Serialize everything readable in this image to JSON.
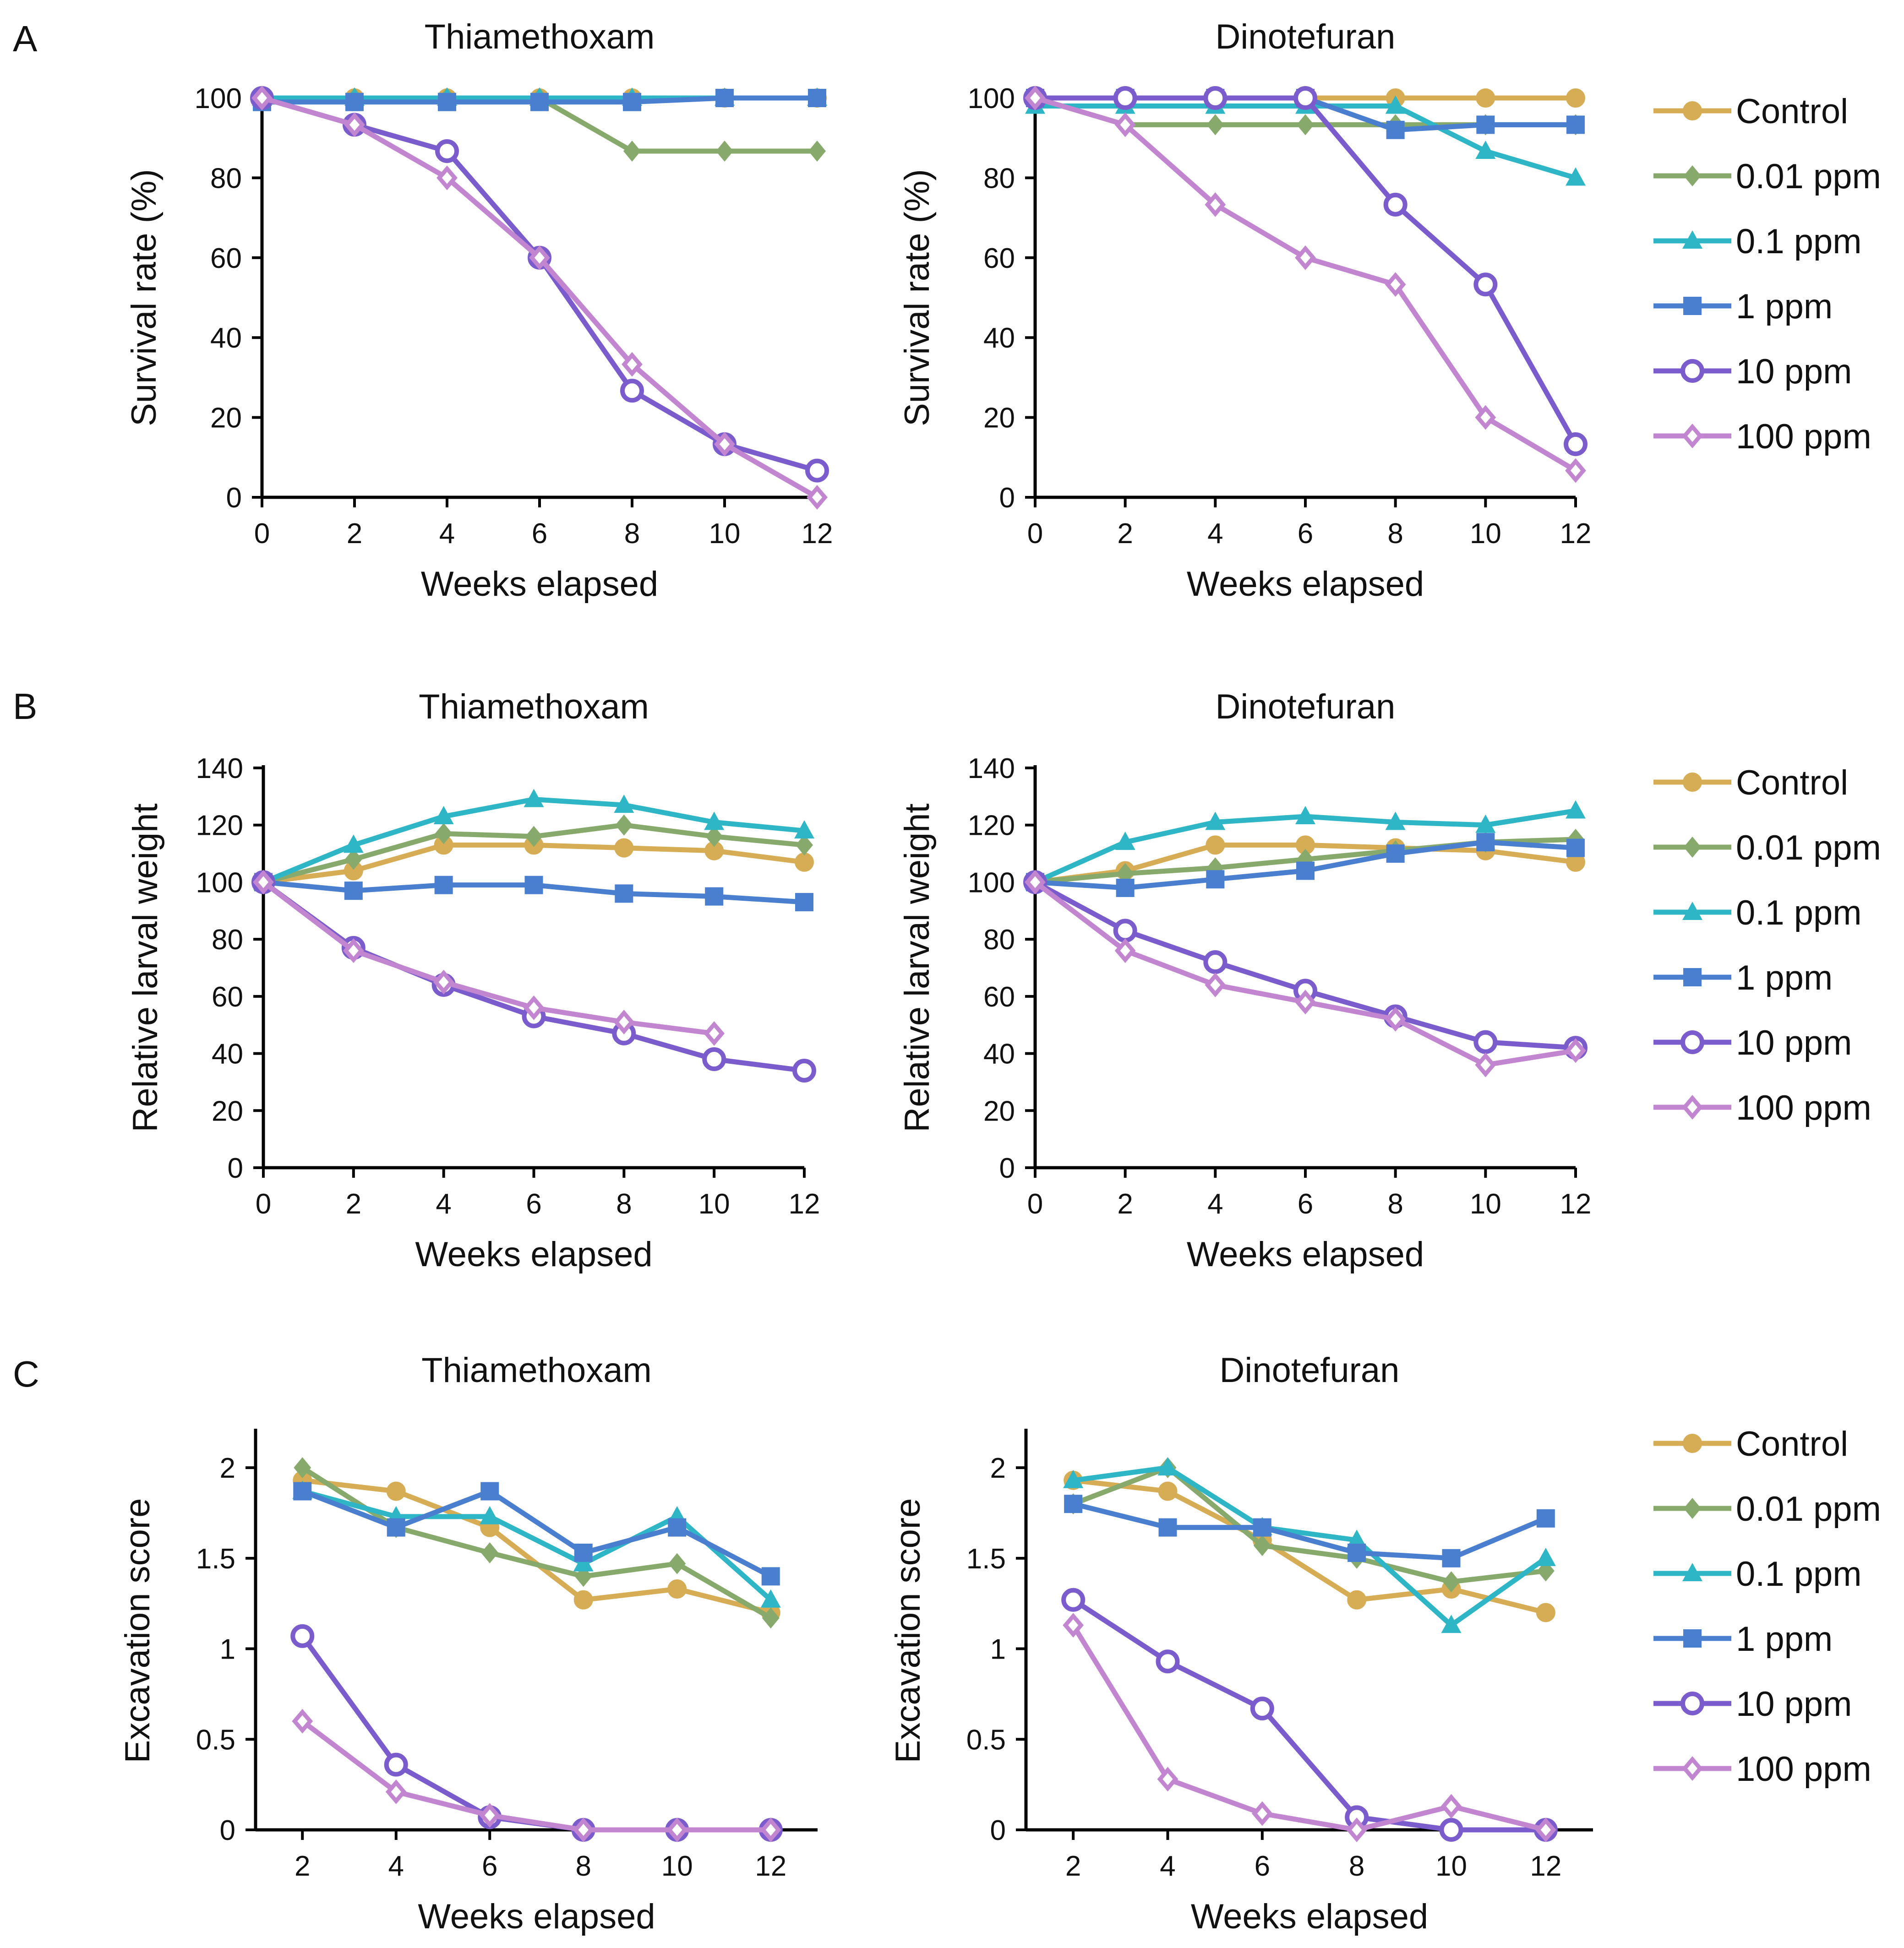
{
  "colors": {
    "control": "#d6ad55",
    "ppm_0_01": "#87a96b",
    "ppm_0_1": "#2fb6c6",
    "ppm_1": "#4a7fd0",
    "ppm_10": "#7b5ccc",
    "ppm_100": "#c285d0",
    "axis": "#000000"
  },
  "panel_letters": [
    "A",
    "B",
    "C"
  ],
  "legend": {
    "items": [
      {
        "key": "control",
        "label": "Control",
        "marker": "circle-filled"
      },
      {
        "key": "ppm_0_01",
        "label": "0.01 ppm",
        "marker": "diamond-filled"
      },
      {
        "key": "ppm_0_1",
        "label": "0.1 ppm",
        "marker": "triangle-filled"
      },
      {
        "key": "ppm_1",
        "label": "1 ppm",
        "marker": "square-filled"
      },
      {
        "key": "ppm_10",
        "label": "10 ppm",
        "marker": "circle-open"
      },
      {
        "key": "ppm_100",
        "label": "100 ppm",
        "marker": "diamond-open"
      }
    ]
  },
  "chart_data": [
    {
      "id": "A-thiamethoxam",
      "panel": "A",
      "type": "line",
      "title": "Thiamethoxam",
      "xlabel": "Weeks elapsed",
      "ylabel": "Survival rate (%)",
      "xlim": [
        0,
        12
      ],
      "ylim": [
        0,
        100
      ],
      "xticks": [
        0,
        2,
        4,
        6,
        8,
        10,
        12
      ],
      "yticks": [
        0,
        20,
        40,
        60,
        80,
        100
      ],
      "ytick_labels": [
        "0",
        "20",
        "40",
        "60",
        "80",
        "100"
      ],
      "series": [
        {
          "key": "control",
          "name": "Control",
          "x": [
            0,
            2,
            4,
            6,
            8,
            10,
            12
          ],
          "values": [
            100,
            100,
            100,
            100,
            100,
            100,
            100
          ]
        },
        {
          "key": "ppm_0_01",
          "name": "0.01 ppm",
          "x": [
            0,
            2,
            4,
            6,
            8,
            10,
            12
          ],
          "values": [
            100,
            100,
            100,
            100,
            86.7,
            86.7,
            86.7
          ]
        },
        {
          "key": "ppm_0_1",
          "name": "0.1 ppm",
          "x": [
            0,
            2,
            4,
            6,
            8,
            10,
            12
          ],
          "values": [
            100,
            100,
            100,
            100,
            100,
            100,
            100
          ]
        },
        {
          "key": "ppm_1",
          "name": "1 ppm",
          "x": [
            0,
            2,
            4,
            6,
            8,
            10,
            12
          ],
          "values": [
            99,
            99,
            99,
            99,
            99,
            100,
            100
          ]
        },
        {
          "key": "ppm_10",
          "name": "10 ppm",
          "x": [
            0,
            2,
            4,
            6,
            8,
            10,
            12
          ],
          "values": [
            100,
            93.3,
            86.7,
            60,
            26.7,
            13.3,
            6.7
          ]
        },
        {
          "key": "ppm_100",
          "name": "100 ppm",
          "x": [
            0,
            2,
            4,
            6,
            8,
            10,
            12
          ],
          "values": [
            100,
            93.3,
            80,
            60,
            33.3,
            13.3,
            0
          ]
        }
      ]
    },
    {
      "id": "A-dinotefuran",
      "panel": "A",
      "type": "line",
      "title": "Dinotefuran",
      "xlabel": "Weeks elapsed",
      "ylabel": "Survival rate (%)",
      "xlim": [
        0,
        12
      ],
      "ylim": [
        0,
        100
      ],
      "xticks": [
        0,
        2,
        4,
        6,
        8,
        10,
        12
      ],
      "yticks": [
        0,
        20,
        40,
        60,
        80,
        100
      ],
      "ytick_labels": [
        "0",
        "20",
        "40",
        "60",
        "80",
        "100"
      ],
      "series": [
        {
          "key": "control",
          "name": "Control",
          "x": [
            0,
            2,
            4,
            6,
            8,
            10,
            12
          ],
          "values": [
            100,
            100,
            100,
            100,
            100,
            100,
            100
          ]
        },
        {
          "key": "ppm_0_01",
          "name": "0.01 ppm",
          "x": [
            0,
            2,
            4,
            6,
            8,
            10,
            12
          ],
          "values": [
            100,
            93.3,
            93.3,
            93.3,
            93.3,
            93.3,
            93.3
          ]
        },
        {
          "key": "ppm_0_1",
          "name": "0.1 ppm",
          "x": [
            0,
            2,
            4,
            6,
            8,
            10,
            12
          ],
          "values": [
            98,
            98,
            98,
            98,
            98,
            86.7,
            80
          ]
        },
        {
          "key": "ppm_1",
          "name": "1 ppm",
          "x": [
            0,
            2,
            4,
            6,
            8,
            10,
            12
          ],
          "values": [
            100,
            100,
            100,
            100,
            92,
            93.3,
            93.3
          ]
        },
        {
          "key": "ppm_10",
          "name": "10 ppm",
          "x": [
            0,
            2,
            4,
            6,
            8,
            10,
            12
          ],
          "values": [
            100,
            100,
            100,
            100,
            73.3,
            53.3,
            13.3
          ]
        },
        {
          "key": "ppm_100",
          "name": "100 ppm",
          "x": [
            0,
            2,
            4,
            6,
            8,
            10,
            12
          ],
          "values": [
            100,
            93.3,
            73.3,
            60,
            53.3,
            20,
            6.7
          ]
        }
      ]
    },
    {
      "id": "B-thiamethoxam",
      "panel": "B",
      "type": "line",
      "title": "Thiamethoxam",
      "xlabel": "Weeks elapsed",
      "ylabel": "Relative larval weight",
      "xlim": [
        0,
        12
      ],
      "ylim": [
        0,
        140
      ],
      "xticks": [
        0,
        2,
        4,
        6,
        8,
        10,
        12
      ],
      "yticks": [
        0,
        20,
        40,
        60,
        80,
        100,
        120,
        140
      ],
      "ytick_labels": [
        "0",
        "20",
        "40",
        "60",
        "80",
        "100",
        "120",
        "140"
      ],
      "series": [
        {
          "key": "control",
          "name": "Control",
          "x": [
            0,
            2,
            4,
            6,
            8,
            10,
            12
          ],
          "values": [
            100,
            104,
            113,
            113,
            112,
            111,
            107
          ]
        },
        {
          "key": "ppm_0_01",
          "name": "0.01 ppm",
          "x": [
            0,
            2,
            4,
            6,
            8,
            10,
            12
          ],
          "values": [
            100,
            108,
            117,
            116,
            120,
            116,
            113
          ]
        },
        {
          "key": "ppm_0_1",
          "name": "0.1 ppm",
          "x": [
            0,
            2,
            4,
            6,
            8,
            10,
            12
          ],
          "values": [
            100,
            113,
            123,
            129,
            127,
            121,
            118
          ]
        },
        {
          "key": "ppm_1",
          "name": "1 ppm",
          "x": [
            0,
            2,
            4,
            6,
            8,
            10,
            12
          ],
          "values": [
            100,
            97,
            99,
            99,
            96,
            95,
            93
          ]
        },
        {
          "key": "ppm_10",
          "name": "10 ppm",
          "x": [
            0,
            2,
            4,
            6,
            8,
            10,
            12
          ],
          "values": [
            100,
            77,
            64,
            53,
            47,
            38,
            34
          ]
        },
        {
          "key": "ppm_100",
          "name": "100 ppm",
          "x": [
            0,
            2,
            4,
            6,
            8,
            10
          ],
          "values": [
            100,
            76,
            65,
            56,
            51,
            47
          ]
        }
      ]
    },
    {
      "id": "B-dinotefuran",
      "panel": "B",
      "type": "line",
      "title": "Dinotefuran",
      "xlabel": "Weeks elapsed",
      "ylabel": "Relative larval weight",
      "xlim": [
        0,
        12
      ],
      "ylim": [
        0,
        140
      ],
      "xticks": [
        0,
        2,
        4,
        6,
        8,
        10,
        12
      ],
      "yticks": [
        0,
        20,
        40,
        60,
        80,
        100,
        120,
        140
      ],
      "ytick_labels": [
        "0",
        "20",
        "40",
        "60",
        "80",
        "100",
        "120",
        "140"
      ],
      "series": [
        {
          "key": "control",
          "name": "Control",
          "x": [
            0,
            2,
            4,
            6,
            8,
            10,
            12
          ],
          "values": [
            100,
            104,
            113,
            113,
            112,
            111,
            107
          ]
        },
        {
          "key": "ppm_0_01",
          "name": "0.01 ppm",
          "x": [
            0,
            2,
            4,
            6,
            8,
            10,
            12
          ],
          "values": [
            100,
            103,
            105,
            108,
            111,
            114,
            115
          ]
        },
        {
          "key": "ppm_0_1",
          "name": "0.1 ppm",
          "x": [
            0,
            2,
            4,
            6,
            8,
            10,
            12
          ],
          "values": [
            100,
            114,
            121,
            123,
            121,
            120,
            125
          ]
        },
        {
          "key": "ppm_1",
          "name": "1 ppm",
          "x": [
            0,
            2,
            4,
            6,
            8,
            10,
            12
          ],
          "values": [
            100,
            98,
            101,
            104,
            110,
            114,
            112
          ]
        },
        {
          "key": "ppm_10",
          "name": "10 ppm",
          "x": [
            0,
            2,
            4,
            6,
            8,
            10,
            12
          ],
          "values": [
            100,
            83,
            72,
            62,
            53,
            44,
            42
          ]
        },
        {
          "key": "ppm_100",
          "name": "100 ppm",
          "x": [
            0,
            2,
            4,
            6,
            8,
            10,
            12
          ],
          "values": [
            100,
            76,
            64,
            58,
            52,
            36,
            41
          ]
        }
      ]
    },
    {
      "id": "C-thiamethoxam",
      "panel": "C",
      "type": "line",
      "title": "Thiamethoxam",
      "xlabel": "Weeks elapsed",
      "ylabel": "Excavation score",
      "xlim": [
        1,
        13
      ],
      "ylim": [
        0,
        2.2
      ],
      "xticks": [
        2,
        4,
        6,
        8,
        10,
        12
      ],
      "yticks": [
        0,
        0.5,
        1,
        1.5,
        2
      ],
      "ytick_labels": [
        "0",
        "0.5",
        "1",
        "1.5",
        "2"
      ],
      "series": [
        {
          "key": "control",
          "name": "Control",
          "x": [
            2,
            4,
            6,
            8,
            10,
            12
          ],
          "values": [
            1.93,
            1.87,
            1.67,
            1.27,
            1.33,
            1.2
          ]
        },
        {
          "key": "ppm_0_01",
          "name": "0.01 ppm",
          "x": [
            2,
            4,
            6,
            8,
            10,
            12
          ],
          "values": [
            2.0,
            1.67,
            1.53,
            1.4,
            1.47,
            1.17
          ]
        },
        {
          "key": "ppm_0_1",
          "name": "0.1 ppm",
          "x": [
            2,
            4,
            6,
            8,
            10,
            12
          ],
          "values": [
            1.87,
            1.73,
            1.73,
            1.47,
            1.73,
            1.27
          ]
        },
        {
          "key": "ppm_1",
          "name": "1 ppm",
          "x": [
            2,
            4,
            6,
            8,
            10,
            12
          ],
          "values": [
            1.87,
            1.67,
            1.87,
            1.53,
            1.67,
            1.4
          ]
        },
        {
          "key": "ppm_10",
          "name": "10 ppm",
          "x": [
            2,
            4,
            6,
            8,
            10,
            12
          ],
          "values": [
            1.07,
            0.36,
            0.07,
            0,
            0,
            0
          ]
        },
        {
          "key": "ppm_100",
          "name": "100 ppm",
          "x": [
            2,
            4,
            6,
            8,
            10,
            12
          ],
          "values": [
            0.6,
            0.21,
            0.08,
            0,
            0,
            0
          ]
        }
      ]
    },
    {
      "id": "C-dinotefuran",
      "panel": "C",
      "type": "line",
      "title": "Dinotefuran",
      "xlabel": "Weeks elapsed",
      "ylabel": "Excavation score",
      "xlim": [
        1,
        13
      ],
      "ylim": [
        0,
        2.2
      ],
      "xticks": [
        2,
        4,
        6,
        8,
        10,
        12
      ],
      "yticks": [
        0,
        0.5,
        1,
        1.5,
        2
      ],
      "ytick_labels": [
        "0",
        "0.5",
        "1",
        "1.5",
        "2"
      ],
      "series": [
        {
          "key": "control",
          "name": "Control",
          "x": [
            2,
            4,
            6,
            8,
            10,
            12
          ],
          "values": [
            1.93,
            1.87,
            1.6,
            1.27,
            1.33,
            1.2
          ]
        },
        {
          "key": "ppm_0_01",
          "name": "0.01 ppm",
          "x": [
            2,
            4,
            6,
            8,
            10,
            12
          ],
          "values": [
            1.8,
            2.0,
            1.57,
            1.5,
            1.37,
            1.43
          ]
        },
        {
          "key": "ppm_0_1",
          "name": "0.1 ppm",
          "x": [
            2,
            4,
            6,
            8,
            10,
            12
          ],
          "values": [
            1.93,
            2.0,
            1.67,
            1.6,
            1.13,
            1.5
          ]
        },
        {
          "key": "ppm_1",
          "name": "1 ppm",
          "x": [
            2,
            4,
            6,
            8,
            10,
            12
          ],
          "values": [
            1.8,
            1.67,
            1.67,
            1.53,
            1.5,
            1.72
          ]
        },
        {
          "key": "ppm_10",
          "name": "10 ppm",
          "x": [
            2,
            4,
            6,
            8,
            10,
            12
          ],
          "values": [
            1.27,
            0.93,
            0.67,
            0.07,
            0,
            0
          ]
        },
        {
          "key": "ppm_100",
          "name": "100 ppm",
          "x": [
            2,
            4,
            6,
            8,
            10,
            12
          ],
          "values": [
            1.13,
            0.28,
            0.09,
            0,
            0.13,
            0
          ]
        }
      ]
    }
  ]
}
